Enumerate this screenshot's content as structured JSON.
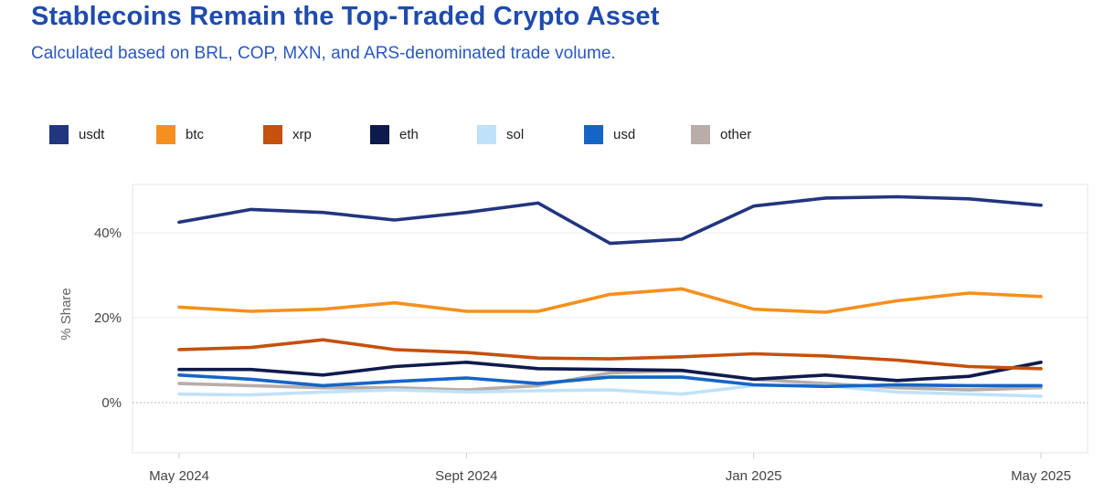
{
  "header": {
    "title": "Stablecoins Remain the Top-Traded Crypto Asset",
    "subtitle": "Calculated based on BRL, COP, MXN, and ARS-denominated trade volume."
  },
  "chart_data": {
    "type": "line",
    "title": "Stablecoins Remain the Top-Traded Crypto Asset",
    "subtitle": "Calculated based on BRL, COP, MXN, and ARS-denominated trade volume.",
    "xlabel": "",
    "ylabel": "% Share",
    "ylim": [
      -12,
      51
    ],
    "yticks": [
      0,
      20,
      40
    ],
    "ytick_labels": [
      "0%",
      "20%",
      "40%"
    ],
    "x": [
      "May 2024",
      "Jun 2024",
      "Jul 2024",
      "Aug 2024",
      "Sept 2024",
      "Oct 2024",
      "Nov 2024",
      "Dec 2024",
      "Jan 2025",
      "Feb 2025",
      "Mar 2025",
      "Apr 2025",
      "May 2025"
    ],
    "xtick_labels": [
      {
        "index": 0,
        "label": "May 2024"
      },
      {
        "index": 4,
        "label": "Sept 2024"
      },
      {
        "index": 8,
        "label": "Jan 2025"
      },
      {
        "index": 12,
        "label": "May 2025"
      }
    ],
    "grid": true,
    "legend": "top-left",
    "series": [
      {
        "name": "other",
        "color": "#b8ada8",
        "values": [
          4.5,
          4.0,
          3.5,
          3.5,
          3.0,
          4.0,
          7.0,
          7.5,
          5.5,
          4.5,
          3.5,
          3.0,
          3.5
        ]
      },
      {
        "name": "sol",
        "color": "#bfe2f8",
        "values": [
          2.0,
          1.8,
          2.5,
          3.0,
          2.5,
          2.8,
          3.0,
          2.0,
          4.0,
          4.0,
          2.5,
          2.0,
          1.5
        ]
      },
      {
        "name": "usd",
        "color": "#1565c8",
        "values": [
          6.5,
          5.5,
          4.0,
          5.0,
          5.8,
          4.5,
          6.0,
          6.0,
          4.2,
          3.8,
          4.2,
          4.0,
          4.0
        ]
      },
      {
        "name": "eth",
        "color": "#0f1a4c",
        "values": [
          7.8,
          7.8,
          6.5,
          8.5,
          9.5,
          8.0,
          7.8,
          7.6,
          5.5,
          6.5,
          5.2,
          6.2,
          9.5
        ]
      },
      {
        "name": "xrp",
        "color": "#c4510d",
        "values": [
          12.5,
          13.0,
          14.8,
          12.5,
          11.8,
          10.5,
          10.3,
          10.8,
          11.5,
          11.0,
          10.0,
          8.5,
          8.0
        ]
      },
      {
        "name": "btc",
        "color": "#f5901e",
        "values": [
          22.5,
          21.5,
          22.0,
          23.5,
          21.5,
          21.5,
          25.5,
          26.8,
          22.0,
          21.3,
          24.0,
          25.8,
          25.0
        ]
      },
      {
        "name": "usdt",
        "color": "#22357f",
        "values": [
          42.5,
          45.5,
          44.8,
          43.0,
          44.8,
          47.0,
          37.5,
          38.5,
          46.3,
          48.2,
          48.5,
          48.0,
          46.5
        ]
      }
    ],
    "legend_order": [
      "usdt",
      "btc",
      "xrp",
      "eth",
      "sol",
      "usd",
      "other"
    ]
  }
}
